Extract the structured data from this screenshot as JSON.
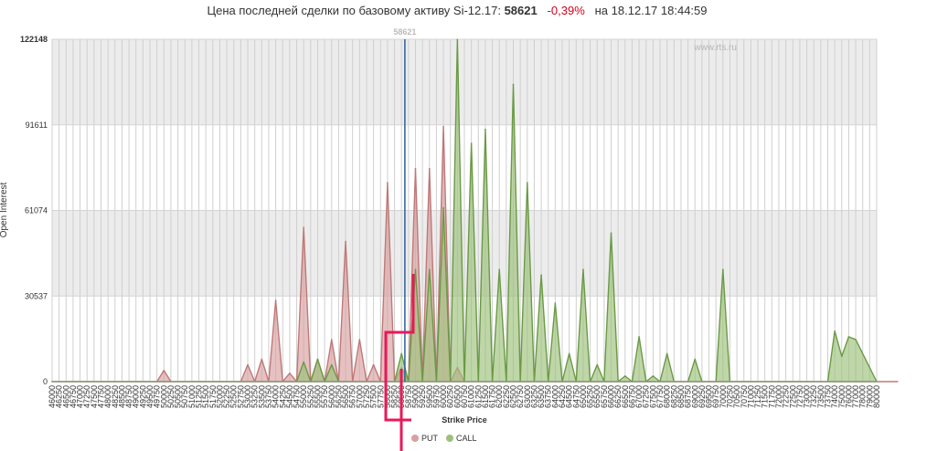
{
  "header": {
    "prefix": "Цена последней сделки по базовому активу Si-12.17:",
    "price": "58621",
    "change": "-0,39%",
    "date_prefix": "на",
    "date": "18.12.17 18:44:59"
  },
  "colors": {
    "put": "#d9a0a0",
    "put_stroke": "#c07878",
    "call": "#9dc07a",
    "call_stroke": "#6a9a45",
    "marker": "#e8195a",
    "price_line": "#2b5f9e",
    "band": "#ececec"
  },
  "chart_data": {
    "type": "area",
    "watermark": "www.rts.ru",
    "xlabel": "Strike Price",
    "ylabel": "Open Interest",
    "ylim": [
      0,
      122148
    ],
    "yticks": [
      "0",
      "30537",
      "61074",
      "91611",
      "122148"
    ],
    "current_price": 58621,
    "current_price_label": "58621",
    "strikes": [
      46000,
      46250,
      46500,
      46750,
      47000,
      47250,
      47500,
      47750,
      48000,
      48250,
      48500,
      48750,
      49000,
      49250,
      49500,
      49750,
      50000,
      50250,
      50500,
      50750,
      51000,
      51250,
      51500,
      51750,
      52000,
      52250,
      52500,
      52750,
      53000,
      53250,
      53500,
      53750,
      54000,
      54250,
      54500,
      54750,
      55000,
      55250,
      55500,
      55750,
      56000,
      56250,
      56500,
      56750,
      57000,
      57250,
      57500,
      57750,
      58000,
      58250,
      58500,
      58750,
      59000,
      59250,
      59500,
      59750,
      60000,
      60250,
      60500,
      60750,
      61000,
      61250,
      61500,
      61750,
      62000,
      62250,
      62500,
      62750,
      63000,
      63250,
      63500,
      63750,
      64000,
      64250,
      64500,
      64750,
      65000,
      65250,
      65500,
      65750,
      66000,
      66250,
      66500,
      66750,
      67000,
      67250,
      67500,
      67750,
      68000,
      68250,
      68500,
      68750,
      69000,
      69250,
      69500,
      69750,
      70000,
      70250,
      70500,
      70750,
      71000,
      71250,
      71500,
      71750,
      72000,
      72250,
      72500,
      72750,
      73000,
      73250,
      73500,
      73750,
      74000,
      75000,
      76000,
      77000,
      78000,
      79000,
      80000
    ],
    "series": [
      {
        "name": "PUT",
        "values": [
          0,
          0,
          0,
          0,
          0,
          0,
          0,
          0,
          0,
          0,
          0,
          0,
          0,
          0,
          0,
          0,
          4000,
          0,
          0,
          0,
          0,
          0,
          0,
          0,
          0,
          0,
          0,
          0,
          6000,
          0,
          8000,
          0,
          29000,
          0,
          3000,
          0,
          55000,
          0,
          8000,
          0,
          15000,
          0,
          50000,
          0,
          15000,
          0,
          6000,
          0,
          71000,
          0,
          5000,
          0,
          76000,
          0,
          76000,
          0,
          91000,
          0,
          5000,
          0,
          0,
          0,
          0,
          0,
          0,
          0,
          0,
          0,
          0,
          0,
          0,
          0,
          0,
          0,
          0,
          0,
          0,
          0,
          0,
          0,
          0,
          0,
          0,
          0,
          0,
          0,
          0,
          0,
          0,
          0,
          0,
          0,
          0,
          0,
          0,
          0,
          0,
          0,
          0,
          0,
          0,
          0,
          0,
          0,
          0,
          0,
          0,
          0,
          0,
          0,
          0,
          0,
          0,
          0,
          0,
          0,
          0,
          0,
          0,
          0,
          0,
          0
        ]
      },
      {
        "name": "CALL",
        "values": [
          0,
          0,
          0,
          0,
          0,
          0,
          0,
          0,
          0,
          0,
          0,
          0,
          0,
          0,
          0,
          0,
          0,
          0,
          0,
          0,
          0,
          0,
          0,
          0,
          0,
          0,
          0,
          0,
          0,
          0,
          0,
          0,
          0,
          0,
          0,
          0,
          7000,
          0,
          8000,
          0,
          6000,
          0,
          0,
          0,
          0,
          0,
          0,
          0,
          0,
          0,
          10000,
          0,
          40000,
          0,
          40000,
          0,
          62000,
          0,
          122000,
          0,
          85000,
          0,
          90000,
          0,
          40000,
          0,
          106000,
          0,
          71000,
          0,
          38000,
          0,
          28000,
          0,
          10000,
          0,
          40000,
          0,
          6000,
          0,
          53000,
          0,
          2000,
          0,
          16000,
          0,
          2000,
          0,
          10000,
          0,
          0,
          0,
          8000,
          0,
          0,
          0,
          40000,
          0,
          0,
          0,
          0,
          0,
          0,
          0,
          0,
          0,
          0,
          0,
          0,
          0,
          0,
          0,
          18000,
          9000,
          16000,
          15000
        ]
      }
    ],
    "legend": [
      {
        "name": "PUT",
        "color": "#d9a0a0"
      },
      {
        "name": "CALL",
        "color": "#9dc07a"
      }
    ],
    "legend_position": "bottom-center",
    "grid": true
  }
}
